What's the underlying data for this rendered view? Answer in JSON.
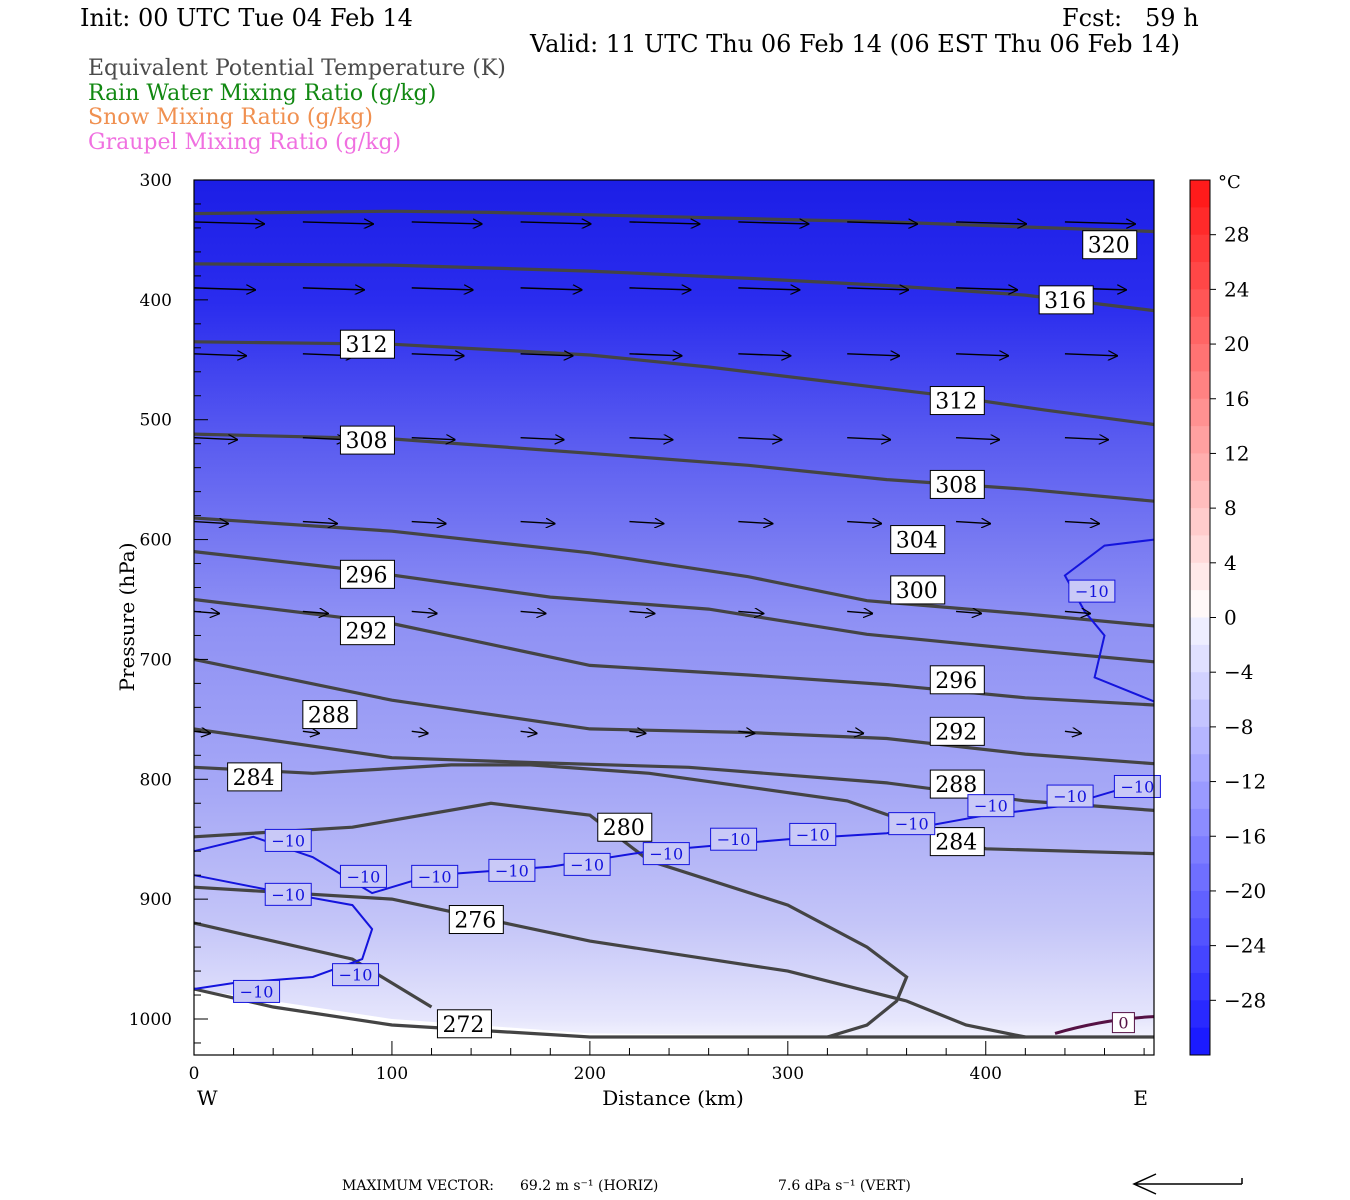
{
  "header": {
    "init": "Init: 00 UTC Tue 04 Feb 14",
    "fcst": "Fcst:   59 h",
    "valid": "Valid: 11 UTC Thu 06 Feb 14 (06 EST Thu 06 Feb 14)"
  },
  "fields": [
    {
      "label": "Equivalent Potential Temperature (K)",
      "color": "#4a4a4a"
    },
    {
      "label": "Rain Water Mixing Ratio (g/kg)",
      "color": "#118811"
    },
    {
      "label": "Snow Mixing Ratio (g/kg)",
      "color": "#f09050"
    },
    {
      "label": "Graupel Mixing Ratio (g/kg)",
      "color": "#f070e0"
    }
  ],
  "chart_data": {
    "type": "cross-section contour",
    "xlabel": "Distance (km)",
    "ylabel": "Pressure (hPa)",
    "x_ticks": [
      "0",
      "100",
      "200",
      "300",
      "400"
    ],
    "y_ticks": [
      "300",
      "400",
      "500",
      "600",
      "700",
      "800",
      "900",
      "1000"
    ],
    "xlim": [
      0,
      485
    ],
    "ylim": [
      1030,
      300
    ],
    "west_label": "W",
    "east_label": "E",
    "colorbar": {
      "unit": "°C",
      "tick_labels": [
        "28",
        "24",
        "20",
        "16",
        "12",
        "8",
        "4",
        "0",
        "−4",
        "−8",
        "−12",
        "−16",
        "−20",
        "−24",
        "−28"
      ],
      "tick_values": [
        28,
        24,
        20,
        16,
        12,
        8,
        4,
        0,
        -4,
        -8,
        -12,
        -16,
        -20,
        -24,
        -28
      ],
      "min": -32,
      "max": 32
    },
    "theta_e_contours": [
      {
        "value": "320",
        "points": [
          [
            0,
            328
          ],
          [
            50,
            327
          ],
          [
            100,
            326
          ],
          [
            150,
            327
          ],
          [
            200,
            329
          ],
          [
            250,
            331
          ],
          [
            300,
            333
          ],
          [
            350,
            335
          ],
          [
            400,
            338
          ],
          [
            450,
            341
          ],
          [
            485,
            343
          ]
        ],
        "label_at": [
          450,
          354
        ]
      },
      {
        "value": "316",
        "points": [
          [
            0,
            370
          ],
          [
            100,
            371
          ],
          [
            200,
            376
          ],
          [
            280,
            382
          ],
          [
            350,
            388
          ],
          [
            420,
            396
          ],
          [
            485,
            409
          ]
        ],
        "label_at": [
          428,
          400
        ]
      },
      {
        "value": "312",
        "points": [
          [
            0,
            435
          ],
          [
            100,
            437
          ],
          [
            200,
            446
          ],
          [
            260,
            456
          ],
          [
            320,
            468
          ],
          [
            380,
            480
          ],
          [
            430,
            492
          ],
          [
            485,
            504
          ]
        ],
        "label_at": [
          75,
          437
        ]
      },
      {
        "value": "312",
        "points": [],
        "label_at": [
          373,
          484
        ]
      },
      {
        "value": "308",
        "points": [
          [
            0,
            512
          ],
          [
            100,
            516
          ],
          [
            200,
            528
          ],
          [
            280,
            538
          ],
          [
            350,
            550
          ],
          [
            420,
            558
          ],
          [
            485,
            568
          ]
        ],
        "label_at": [
          75,
          517
        ]
      },
      {
        "value": "308",
        "points": [],
        "label_at": [
          373,
          554
        ]
      },
      {
        "value": "304",
        "points": [
          [
            0,
            582
          ],
          [
            100,
            593
          ],
          [
            200,
            611
          ],
          [
            280,
            631
          ],
          [
            340,
            651
          ],
          [
            420,
            662
          ],
          [
            485,
            672
          ]
        ],
        "label_at": [
          353,
          600
        ]
      },
      {
        "value": "300",
        "points": [
          [
            0,
            610
          ],
          [
            80,
            625
          ],
          [
            180,
            648
          ],
          [
            260,
            658
          ],
          [
            340,
            679
          ],
          [
            420,
            692
          ],
          [
            485,
            702
          ]
        ],
        "label_at": [
          353,
          642
        ]
      },
      {
        "value": "296",
        "points": [],
        "label_at": [
          75,
          629
        ]
      },
      {
        "value": "292",
        "points": [],
        "label_at": [
          75,
          676
        ]
      },
      {
        "value": "296",
        "points": [
          [
            0,
            650
          ],
          [
            100,
            670
          ],
          [
            200,
            705
          ],
          [
            280,
            713
          ],
          [
            350,
            721
          ],
          [
            420,
            732
          ],
          [
            485,
            738
          ]
        ],
        "label_at": [
          373,
          717
        ]
      },
      {
        "value": "292",
        "points": [
          [
            0,
            700
          ],
          [
            100,
            734
          ],
          [
            200,
            758
          ],
          [
            280,
            761
          ],
          [
            350,
            766
          ],
          [
            420,
            779
          ],
          [
            485,
            787
          ]
        ],
        "label_at": [
          373,
          760
        ]
      },
      {
        "value": "288",
        "points": [
          [
            0,
            758
          ],
          [
            100,
            782
          ],
          [
            170,
            786
          ],
          [
            250,
            790
          ],
          [
            350,
            803
          ],
          [
            420,
            818
          ],
          [
            485,
            826
          ]
        ],
        "label_at": [
          56,
          746
        ]
      },
      {
        "value": "288",
        "points": [],
        "label_at": [
          373,
          804
        ]
      },
      {
        "value": "284",
        "points": [
          [
            0,
            790
          ],
          [
            60,
            795
          ],
          [
            130,
            788
          ],
          [
            170,
            788
          ],
          [
            230,
            795
          ],
          [
            330,
            818
          ],
          [
            400,
            858
          ],
          [
            485,
            862
          ]
        ],
        "label_at": [
          18,
          798
        ]
      },
      {
        "value": "284",
        "points": [],
        "label_at": [
          373,
          852
        ]
      },
      {
        "value": "280",
        "points": [
          [
            0,
            848
          ],
          [
            80,
            840
          ],
          [
            150,
            820
          ],
          [
            200,
            830
          ],
          [
            230,
            868
          ],
          [
            300,
            905
          ],
          [
            340,
            940
          ],
          [
            360,
            965
          ],
          [
            355,
            985
          ],
          [
            340,
            1005
          ],
          [
            320,
            1015
          ]
        ],
        "label_at": [
          205,
          840
        ]
      },
      {
        "value": "276",
        "points": [
          [
            0,
            890
          ],
          [
            100,
            900
          ],
          [
            200,
            935
          ],
          [
            300,
            960
          ],
          [
            360,
            985
          ],
          [
            390,
            1005
          ],
          [
            420,
            1015
          ]
        ],
        "label_at": [
          130,
          917
        ]
      },
      {
        "value": "272",
        "points": [
          [
            0,
            975
          ],
          [
            40,
            990
          ],
          [
            100,
            1005
          ],
          [
            200,
            1015
          ],
          [
            330,
            1015
          ],
          [
            485,
            1015
          ]
        ],
        "label_at": [
          124,
          1004
        ]
      },
      {
        "value": "",
        "points": [
          [
            0,
            920
          ],
          [
            40,
            935
          ],
          [
            80,
            950
          ],
          [
            120,
            990
          ]
        ],
        "label_at": null
      }
    ],
    "temperature_contours": [
      {
        "value": "−10",
        "points": [
          [
            0,
            860
          ],
          [
            30,
            848
          ],
          [
            60,
            865
          ],
          [
            90,
            895
          ],
          [
            120,
            880
          ],
          [
            180,
            873
          ],
          [
            230,
            860
          ],
          [
            300,
            850
          ],
          [
            350,
            845
          ],
          [
            400,
            830
          ],
          [
            440,
            822
          ],
          [
            485,
            800
          ]
        ],
        "label_ats": [
          [
            37,
            851
          ],
          [
            75,
            881
          ],
          [
            111,
            881
          ],
          [
            150,
            876
          ],
          [
            188,
            871
          ],
          [
            228,
            862
          ],
          [
            262,
            850
          ],
          [
            302,
            846
          ],
          [
            352,
            837
          ],
          [
            392,
            822
          ],
          [
            432,
            814
          ],
          [
            466,
            806
          ]
        ]
      },
      {
        "value": "−10",
        "points": [
          [
            0,
            880
          ],
          [
            40,
            893
          ],
          [
            80,
            905
          ],
          [
            90,
            925
          ],
          [
            85,
            950
          ],
          [
            60,
            965
          ],
          [
            20,
            970
          ],
          [
            0,
            975
          ]
        ],
        "label_ats": [
          [
            37,
            896
          ],
          [
            71,
            963
          ],
          [
            21,
            977
          ]
        ]
      },
      {
        "value": "−10",
        "points": [
          [
            485,
            600
          ],
          [
            460,
            605
          ],
          [
            440,
            630
          ],
          [
            450,
            660
          ],
          [
            460,
            680
          ],
          [
            455,
            715
          ],
          [
            485,
            735
          ]
        ],
        "label_ats": [
          [
            443,
            643
          ]
        ]
      }
    ],
    "wind_rows_hpa": [
      335,
      390,
      445,
      515,
      585,
      660,
      760
    ],
    "max_vector_horiz": "69.2 m s⁻¹ (HORIZ)",
    "max_vector_vert": "7.6 dPa s⁻¹ (VERT)",
    "max_vector_label": "MAXIMUM VECTOR:"
  }
}
